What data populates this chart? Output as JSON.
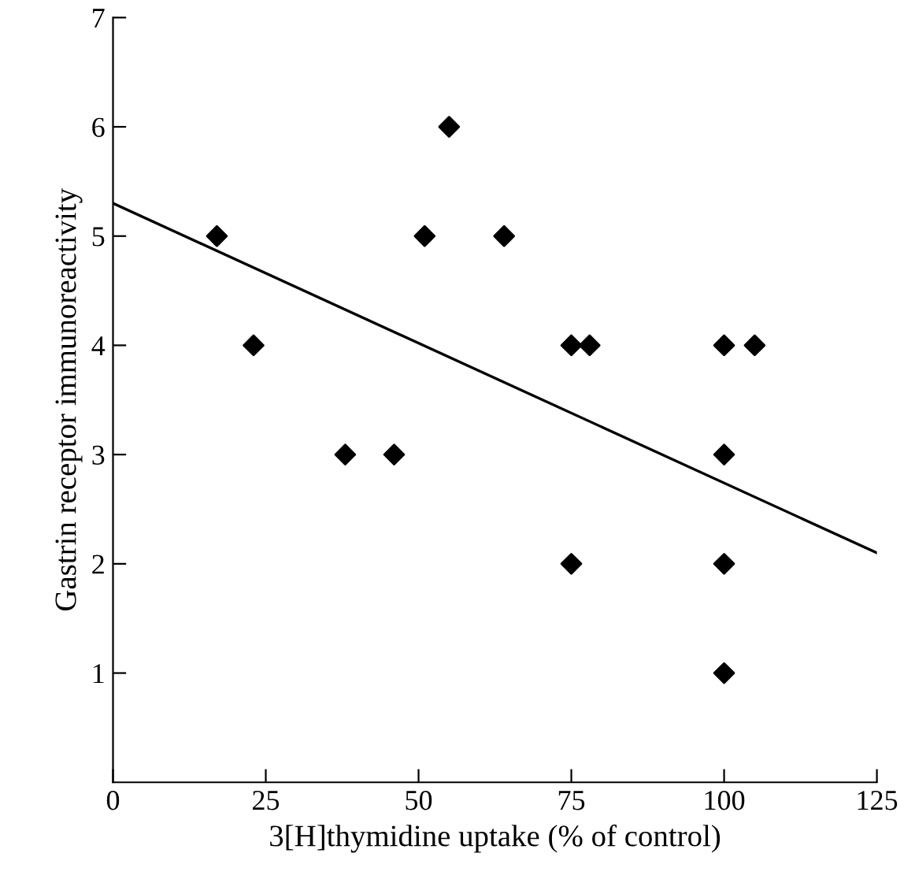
{
  "chart_data": {
    "type": "scatter",
    "xlabel": "3[H]thymidine uptake (% of control)",
    "ylabel": "Gastrin receptor immunoreactivity",
    "xlim": [
      0,
      125
    ],
    "ylim": [
      0,
      7
    ],
    "xticks": [
      0,
      25,
      50,
      75,
      100,
      125
    ],
    "yticks": [
      1,
      2,
      3,
      4,
      5,
      6,
      7
    ],
    "grid": false,
    "legend": false,
    "series": [
      {
        "color": "#000000",
        "marker": "diamond",
        "x": [
          17,
          23,
          38,
          46,
          51,
          55,
          64,
          75,
          78,
          75,
          100,
          105,
          100,
          100,
          100
        ],
        "values": [
          5,
          4,
          3,
          3,
          5,
          6,
          5,
          4,
          4,
          2,
          4,
          4,
          3,
          2,
          1
        ]
      },
      {
        "type": "line",
        "color": "#000000",
        "marker": "none",
        "line_style": "solid",
        "x": [
          0,
          125
        ],
        "values": [
          5.3,
          2.1
        ]
      }
    ]
  }
}
